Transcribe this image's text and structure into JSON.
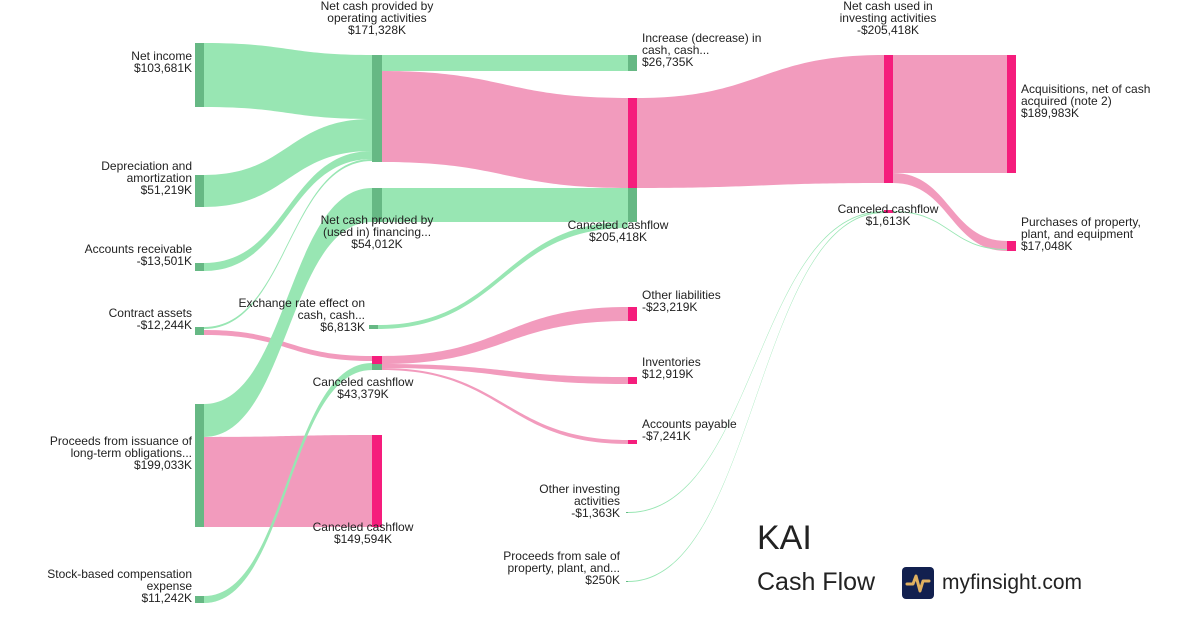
{
  "chart_data": {
    "type": "sankey",
    "colors": {
      "inflow_link": "#98e6b3",
      "outflow_link": "#f29bbd",
      "inflow_node": "#66b884",
      "outflow_node": "#f51d7c"
    },
    "nodes": [
      {
        "id": "net_income",
        "name": "Net income",
        "value": "$103,681K"
      },
      {
        "id": "depreciation",
        "name": "Depreciation and amortization",
        "value": "$51,219K"
      },
      {
        "id": "accounts_receivable",
        "name": "Accounts receivable",
        "value": "-$13,501K"
      },
      {
        "id": "contract_assets",
        "name": "Contract assets",
        "value": "-$12,244K"
      },
      {
        "id": "proceeds_ltd",
        "name": "Proceeds from issuance of long-term obligations...",
        "value": "$199,033K"
      },
      {
        "id": "stock_comp",
        "name": "Stock-based compensation expense",
        "value": "$11,242K"
      },
      {
        "id": "net_operating",
        "name": "Net cash provided by operating activities",
        "value": "$171,328K"
      },
      {
        "id": "net_financing",
        "name": "Net cash provided by (used in) financing...",
        "value": "$54,012K"
      },
      {
        "id": "exchange_rate",
        "name": "Exchange rate effect on cash, cash...",
        "value": "$6,813K"
      },
      {
        "id": "canceled_43",
        "name": "Canceled cashflow",
        "value": "$43,379K"
      },
      {
        "id": "canceled_149",
        "name": "Canceled cashflow",
        "value": "$149,594K"
      },
      {
        "id": "increase_cash",
        "name": "Increase (decrease) in cash, cash...",
        "value": "$26,735K"
      },
      {
        "id": "canceled_205",
        "name": "Canceled cashflow",
        "value": "$205,418K"
      },
      {
        "id": "other_liabilities",
        "name": "Other liabilities",
        "value": "-$23,219K"
      },
      {
        "id": "inventories",
        "name": "Inventories",
        "value": "$12,919K"
      },
      {
        "id": "accounts_payable",
        "name": "Accounts payable",
        "value": "-$7,241K"
      },
      {
        "id": "other_investing",
        "name": "Other investing activities",
        "value": "-$1,363K"
      },
      {
        "id": "proceeds_sale",
        "name": "Proceeds from sale of property, plant, and...",
        "value": "$250K"
      },
      {
        "id": "net_investing",
        "name": "Net cash used in investing activities",
        "value": "-$205,418K"
      },
      {
        "id": "canceled_1613",
        "name": "Canceled cashflow",
        "value": "$1,613K"
      },
      {
        "id": "acquisitions",
        "name": "Acquisitions, net of cash acquired (note 2)",
        "value": "$189,983K"
      },
      {
        "id": "purchases_ppe",
        "name": "Purchases of property, plant, and equipment",
        "value": "$17,048K"
      }
    ],
    "links": [
      {
        "from": "net_income",
        "to": "net_operating",
        "kind": "inflow"
      },
      {
        "from": "depreciation",
        "to": "net_operating",
        "kind": "inflow"
      },
      {
        "from": "accounts_receivable",
        "to": "net_operating",
        "kind": "inflow"
      },
      {
        "from": "contract_assets",
        "to": "net_operating",
        "kind": "inflow"
      },
      {
        "from": "contract_assets",
        "to": "canceled_43",
        "kind": "outflow"
      },
      {
        "from": "proceeds_ltd",
        "to": "net_financing",
        "kind": "inflow"
      },
      {
        "from": "proceeds_ltd",
        "to": "canceled_149",
        "kind": "outflow"
      },
      {
        "from": "stock_comp",
        "to": "canceled_43",
        "kind": "inflow"
      },
      {
        "from": "net_operating",
        "to": "increase_cash",
        "kind": "inflow"
      },
      {
        "from": "net_operating",
        "to": "canceled_205",
        "kind": "outflow"
      },
      {
        "from": "net_financing",
        "to": "canceled_205",
        "kind": "inflow"
      },
      {
        "from": "exchange_rate",
        "to": "canceled_205",
        "kind": "inflow"
      },
      {
        "from": "canceled_43",
        "to": "other_liabilities",
        "kind": "outflow"
      },
      {
        "from": "canceled_43",
        "to": "inventories",
        "kind": "outflow"
      },
      {
        "from": "canceled_43",
        "to": "accounts_payable",
        "kind": "outflow"
      },
      {
        "from": "canceled_205",
        "to": "net_investing",
        "kind": "outflow"
      },
      {
        "from": "other_investing",
        "to": "canceled_1613",
        "kind": "inflow"
      },
      {
        "from": "proceeds_sale",
        "to": "canceled_1613",
        "kind": "inflow"
      },
      {
        "from": "net_investing",
        "to": "acquisitions",
        "kind": "outflow"
      },
      {
        "from": "net_investing",
        "to": "purchases_ppe",
        "kind": "outflow"
      },
      {
        "from": "canceled_1613",
        "to": "purchases_ppe",
        "kind": "inflow"
      }
    ]
  },
  "branding": {
    "ticker": "KAI",
    "subtitle": "Cash Flow",
    "site": "myfinsight.com",
    "logo_icon": "pulse-line-icon"
  }
}
